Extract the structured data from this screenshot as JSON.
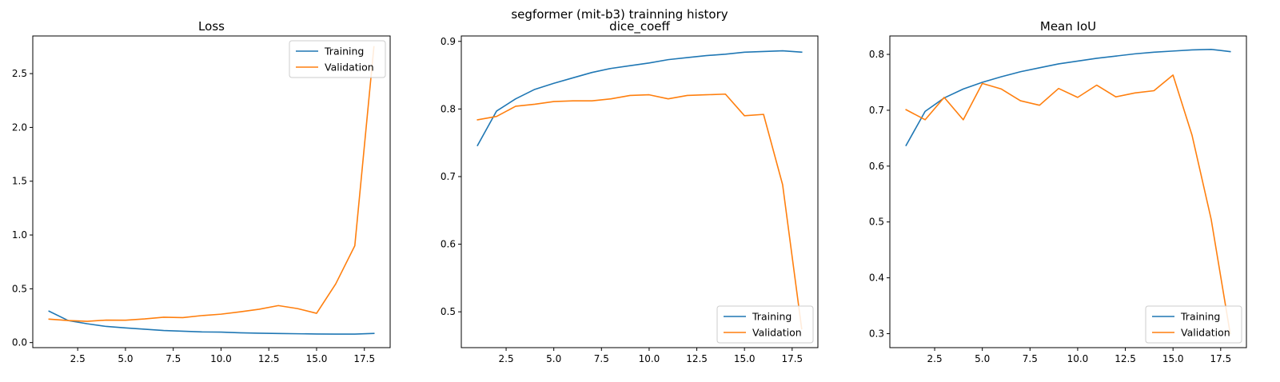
{
  "suptitle": "segformer (mit-b3) trainning history",
  "colors": {
    "training": "#1f77b4",
    "validation": "#ff7f0e",
    "frame": "#000000",
    "legend_edge": "#cccccc"
  },
  "chart_data": [
    {
      "type": "line",
      "title": "Loss",
      "xlabel": "",
      "ylabel": "",
      "x": [
        1,
        2,
        3,
        4,
        5,
        6,
        7,
        8,
        9,
        10,
        11,
        12,
        13,
        14,
        15,
        16,
        17,
        18
      ],
      "xlim": [
        0.15,
        18.85
      ],
      "ylim": [
        -0.047,
        2.85
      ],
      "xticks": [
        2.5,
        5.0,
        7.5,
        10.0,
        12.5,
        15.0,
        17.5
      ],
      "xtick_labels": [
        "2.5",
        "5.0",
        "7.5",
        "10.0",
        "12.5",
        "15.0",
        "17.5"
      ],
      "yticks": [
        0.0,
        0.5,
        1.0,
        1.5,
        2.0,
        2.5
      ],
      "ytick_labels": [
        "0.0",
        "0.5",
        "1.0",
        "1.5",
        "2.0",
        "2.5"
      ],
      "grid": false,
      "legend_position": "upper right",
      "series": [
        {
          "name": "Training",
          "color": "#1f77b4",
          "values": [
            0.292,
            0.205,
            0.175,
            0.15,
            0.136,
            0.124,
            0.112,
            0.106,
            0.099,
            0.097,
            0.091,
            0.087,
            0.084,
            0.082,
            0.08,
            0.079,
            0.079,
            0.085
          ]
        },
        {
          "name": "Validation",
          "color": "#ff7f0e",
          "values": [
            0.218,
            0.205,
            0.198,
            0.209,
            0.208,
            0.22,
            0.236,
            0.232,
            0.251,
            0.264,
            0.286,
            0.31,
            0.344,
            0.316,
            0.272,
            0.545,
            0.9,
            2.75
          ]
        }
      ]
    },
    {
      "type": "line",
      "title": "dice_coeff",
      "xlabel": "",
      "ylabel": "",
      "x": [
        1,
        2,
        3,
        4,
        5,
        6,
        7,
        8,
        9,
        10,
        11,
        12,
        13,
        14,
        15,
        16,
        17,
        18
      ],
      "xlim": [
        0.15,
        18.85
      ],
      "ylim": [
        0.447,
        0.908
      ],
      "xticks": [
        2.5,
        5.0,
        7.5,
        10.0,
        12.5,
        15.0,
        17.5
      ],
      "xtick_labels": [
        "2.5",
        "5.0",
        "7.5",
        "10.0",
        "12.5",
        "15.0",
        "17.5"
      ],
      "yticks": [
        0.5,
        0.6,
        0.7,
        0.8,
        0.9
      ],
      "ytick_labels": [
        "0.5",
        "0.6",
        "0.7",
        "0.8",
        "0.9"
      ],
      "grid": false,
      "legend_position": "lower right",
      "series": [
        {
          "name": "Training",
          "color": "#1f77b4",
          "values": [
            0.746,
            0.797,
            0.815,
            0.829,
            0.838,
            0.846,
            0.854,
            0.86,
            0.864,
            0.868,
            0.873,
            0.876,
            0.879,
            0.881,
            0.884,
            0.885,
            0.886,
            0.884
          ]
        },
        {
          "name": "Validation",
          "color": "#ff7f0e",
          "values": [
            0.784,
            0.789,
            0.804,
            0.807,
            0.811,
            0.812,
            0.812,
            0.815,
            0.82,
            0.821,
            0.815,
            0.82,
            0.821,
            0.822,
            0.79,
            0.792,
            0.688,
            0.475
          ]
        }
      ]
    },
    {
      "type": "line",
      "title": "Mean IoU",
      "xlabel": "",
      "ylabel": "",
      "x": [
        1,
        2,
        3,
        4,
        5,
        6,
        7,
        8,
        9,
        10,
        11,
        12,
        13,
        14,
        15,
        16,
        17,
        18
      ],
      "xlim": [
        0.15,
        18.85
      ],
      "ylim": [
        0.275,
        0.833
      ],
      "xticks": [
        2.5,
        5.0,
        7.5,
        10.0,
        12.5,
        15.0,
        17.5
      ],
      "xtick_labels": [
        "2.5",
        "5.0",
        "7.5",
        "10.0",
        "12.5",
        "15.0",
        "17.5"
      ],
      "yticks": [
        0.3,
        0.4,
        0.5,
        0.6,
        0.7,
        0.8
      ],
      "ytick_labels": [
        "0.3",
        "0.4",
        "0.5",
        "0.6",
        "0.7",
        "0.8"
      ],
      "grid": false,
      "legend_position": "lower right",
      "series": [
        {
          "name": "Training",
          "color": "#1f77b4",
          "values": [
            0.637,
            0.698,
            0.722,
            0.738,
            0.75,
            0.76,
            0.769,
            0.776,
            0.783,
            0.788,
            0.793,
            0.797,
            0.801,
            0.804,
            0.806,
            0.808,
            0.809,
            0.805
          ]
        },
        {
          "name": "Validation",
          "color": "#ff7f0e",
          "values": [
            0.701,
            0.683,
            0.723,
            0.683,
            0.748,
            0.738,
            0.717,
            0.709,
            0.739,
            0.723,
            0.745,
            0.724,
            0.731,
            0.735,
            0.763,
            0.655,
            0.505,
            0.3
          ]
        }
      ]
    }
  ]
}
